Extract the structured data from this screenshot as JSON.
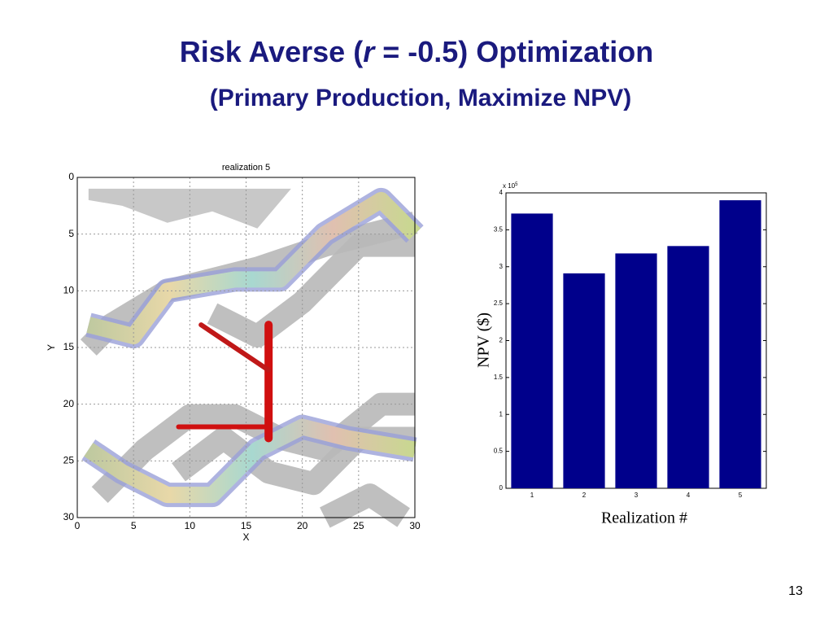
{
  "title_parts": [
    "Risk Averse (",
    "r",
    " = -0.5) Optimization"
  ],
  "subtitle": "(Primary Production, Maximize NPV)",
  "page_number": "13",
  "chart_data": [
    {
      "type": "map",
      "title": "realization 5",
      "x_label": "X",
      "y_label": "Y",
      "xlim": [
        0,
        30
      ],
      "ylim": [
        0,
        30
      ],
      "y_inverted": true,
      "xticks": [
        0,
        5,
        10,
        15,
        20,
        25,
        30
      ],
      "yticks": [
        0,
        5,
        10,
        15,
        20,
        25,
        30
      ],
      "grid": true
    },
    {
      "type": "bar",
      "x_label": "Realization #",
      "y_label": "NPV ($)",
      "y_multiplier": "x 10",
      "y_multiplier_exp": "5",
      "categories": [
        "1",
        "2",
        "3",
        "4",
        "5"
      ],
      "values": [
        3.72,
        2.91,
        3.18,
        3.28,
        3.9
      ],
      "color": "#00008b",
      "ylim": [
        0,
        4
      ],
      "yticks": [
        0,
        0.5,
        1,
        1.5,
        2,
        2.5,
        3,
        3.5,
        4
      ],
      "grid": false
    }
  ]
}
